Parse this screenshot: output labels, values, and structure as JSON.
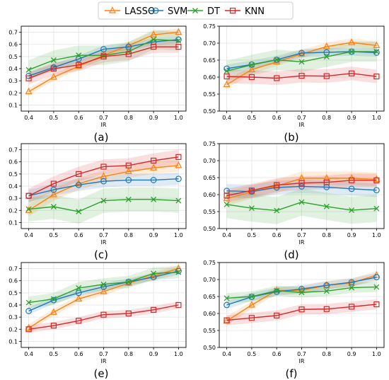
{
  "legend": {
    "position": "top-center",
    "entries": [
      {
        "label": "LASSO",
        "color": "#ff7f0e",
        "marker": "triangle"
      },
      {
        "label": "SVM",
        "color": "#1f77b4",
        "marker": "circle"
      },
      {
        "label": "DT",
        "color": "#2ca02c",
        "marker": "x"
      },
      {
        "label": "KNN",
        "color": "#d62728",
        "marker": "square"
      }
    ]
  },
  "chart_data": [
    {
      "type": "line",
      "panel": "(a)",
      "xlabel": "IR",
      "ylabel": "",
      "x": [
        0.4,
        0.5,
        0.6,
        0.7,
        0.8,
        0.9,
        1.0
      ],
      "ylim": [
        0.05,
        0.75
      ],
      "yticks": [
        0.1,
        0.2,
        0.3,
        0.4,
        0.5,
        0.6,
        0.7
      ],
      "yticklabels": [
        "0.1",
        "0.2",
        "0.3",
        "0.4",
        "0.5",
        "0.6",
        "0.7"
      ],
      "grid": true,
      "series": [
        {
          "name": "LASSO",
          "values": [
            0.21,
            0.33,
            0.42,
            0.51,
            0.59,
            0.68,
            0.7
          ],
          "band": 0.03
        },
        {
          "name": "SVM",
          "values": [
            0.34,
            0.41,
            0.48,
            0.56,
            0.58,
            0.62,
            0.64
          ],
          "band": 0.03
        },
        {
          "name": "DT",
          "values": [
            0.39,
            0.47,
            0.51,
            0.51,
            0.54,
            0.64,
            0.63
          ],
          "band": 0.08
        },
        {
          "name": "KNN",
          "values": [
            0.32,
            0.4,
            0.43,
            0.5,
            0.52,
            0.58,
            0.58
          ],
          "band": 0.05
        }
      ]
    },
    {
      "type": "line",
      "panel": "(b)",
      "xlabel": "IR",
      "ylabel": "",
      "x": [
        0.4,
        0.5,
        0.6,
        0.7,
        0.8,
        0.9,
        1.0
      ],
      "ylim": [
        0.5,
        0.75
      ],
      "yticks": [
        0.5,
        0.55,
        0.6,
        0.65,
        0.7,
        0.75
      ],
      "yticklabels": [
        "0.50",
        "0.55",
        "0.60",
        "0.65",
        "0.70",
        "0.75"
      ],
      "grid": true,
      "series": [
        {
          "name": "LASSO",
          "values": [
            0.578,
            0.622,
            0.645,
            0.668,
            0.69,
            0.702,
            0.693
          ],
          "band": 0.012
        },
        {
          "name": "SVM",
          "values": [
            0.625,
            0.637,
            0.651,
            0.671,
            0.673,
            0.675,
            0.672
          ],
          "band": 0.012
        },
        {
          "name": "DT",
          "values": [
            0.618,
            0.636,
            0.651,
            0.645,
            0.66,
            0.675,
            0.675
          ],
          "band": 0.03
        },
        {
          "name": "KNN",
          "values": [
            0.602,
            0.6,
            0.597,
            0.604,
            0.603,
            0.611,
            0.602
          ],
          "band": 0.02
        }
      ]
    },
    {
      "type": "line",
      "panel": "(c)",
      "xlabel": "IR",
      "ylabel": "",
      "x": [
        0.4,
        0.5,
        0.6,
        0.7,
        0.8,
        0.9,
        1.0
      ],
      "ylim": [
        0.05,
        0.75
      ],
      "yticks": [
        0.1,
        0.2,
        0.3,
        0.4,
        0.5,
        0.6,
        0.7
      ],
      "yticklabels": [
        "0.1",
        "0.2",
        "0.3",
        "0.4",
        "0.5",
        "0.6",
        "0.7"
      ],
      "grid": true,
      "series": [
        {
          "name": "LASSO",
          "values": [
            0.2,
            0.33,
            0.42,
            0.48,
            0.52,
            0.55,
            0.57
          ],
          "band": 0.05
        },
        {
          "name": "SVM",
          "values": [
            0.32,
            0.37,
            0.41,
            0.44,
            0.45,
            0.45,
            0.46
          ],
          "band": 0.05
        },
        {
          "name": "DT",
          "values": [
            0.21,
            0.23,
            0.19,
            0.28,
            0.29,
            0.29,
            0.28
          ],
          "band": 0.1
        },
        {
          "name": "KNN",
          "values": [
            0.32,
            0.42,
            0.5,
            0.56,
            0.57,
            0.61,
            0.64
          ],
          "band": 0.06
        }
      ]
    },
    {
      "type": "line",
      "panel": "(d)",
      "xlabel": "IR",
      "ylabel": "",
      "x": [
        0.4,
        0.5,
        0.6,
        0.7,
        0.8,
        0.9,
        1.0
      ],
      "ylim": [
        0.5,
        0.75
      ],
      "yticks": [
        0.5,
        0.55,
        0.6,
        0.65,
        0.7,
        0.75
      ],
      "yticklabels": [
        "0.50",
        "0.55",
        "0.60",
        "0.65",
        "0.70",
        "0.75"
      ],
      "grid": true,
      "series": [
        {
          "name": "LASSO",
          "values": [
            0.588,
            0.608,
            0.625,
            0.648,
            0.648,
            0.648,
            0.645
          ],
          "band": 0.02
        },
        {
          "name": "SVM",
          "values": [
            0.611,
            0.609,
            0.621,
            0.624,
            0.622,
            0.617,
            0.613
          ],
          "band": 0.02
        },
        {
          "name": "DT",
          "values": [
            0.571,
            0.56,
            0.553,
            0.578,
            0.565,
            0.554,
            0.559
          ],
          "band": 0.04
        },
        {
          "name": "KNN",
          "values": [
            0.597,
            0.612,
            0.628,
            0.634,
            0.636,
            0.642,
            0.642
          ],
          "band": 0.02
        }
      ]
    },
    {
      "type": "line",
      "panel": "(e)",
      "xlabel": "IR",
      "ylabel": "",
      "x": [
        0.4,
        0.5,
        0.6,
        0.7,
        0.8,
        0.9,
        1.0
      ],
      "ylim": [
        0.05,
        0.75
      ],
      "yticks": [
        0.1,
        0.2,
        0.3,
        0.4,
        0.5,
        0.6,
        0.7
      ],
      "yticklabels": [
        "0.1",
        "0.2",
        "0.3",
        "0.4",
        "0.5",
        "0.6",
        "0.7"
      ],
      "grid": true,
      "series": [
        {
          "name": "LASSO",
          "values": [
            0.21,
            0.34,
            0.45,
            0.51,
            0.58,
            0.64,
            0.7
          ],
          "band": 0.03
        },
        {
          "name": "SVM",
          "values": [
            0.35,
            0.44,
            0.5,
            0.55,
            0.59,
            0.63,
            0.68
          ],
          "band": 0.03
        },
        {
          "name": "DT",
          "values": [
            0.42,
            0.45,
            0.54,
            0.57,
            0.59,
            0.66,
            0.67
          ],
          "band": 0.05
        },
        {
          "name": "KNN",
          "values": [
            0.2,
            0.23,
            0.27,
            0.32,
            0.33,
            0.36,
            0.4
          ],
          "band": 0.03
        }
      ]
    },
    {
      "type": "line",
      "panel": "(f)",
      "xlabel": "IR",
      "ylabel": "",
      "x": [
        0.4,
        0.5,
        0.6,
        0.7,
        0.8,
        0.9,
        1.0
      ],
      "ylim": [
        0.5,
        0.75
      ],
      "yticks": [
        0.5,
        0.55,
        0.6,
        0.65,
        0.7,
        0.75
      ],
      "yticklabels": [
        "0.50",
        "0.55",
        "0.60",
        "0.65",
        "0.70",
        "0.75"
      ],
      "grid": true,
      "series": [
        {
          "name": "LASSO",
          "values": [
            0.578,
            0.625,
            0.668,
            0.668,
            0.683,
            0.69,
            0.713
          ],
          "band": 0.012
        },
        {
          "name": "SVM",
          "values": [
            0.625,
            0.649,
            0.664,
            0.672,
            0.683,
            0.692,
            0.707
          ],
          "band": 0.012
        },
        {
          "name": "DT",
          "values": [
            0.645,
            0.65,
            0.667,
            0.662,
            0.666,
            0.676,
            0.678
          ],
          "band": 0.015
        },
        {
          "name": "KNN",
          "values": [
            0.58,
            0.587,
            0.594,
            0.612,
            0.613,
            0.62,
            0.627
          ],
          "band": 0.015
        }
      ]
    }
  ]
}
